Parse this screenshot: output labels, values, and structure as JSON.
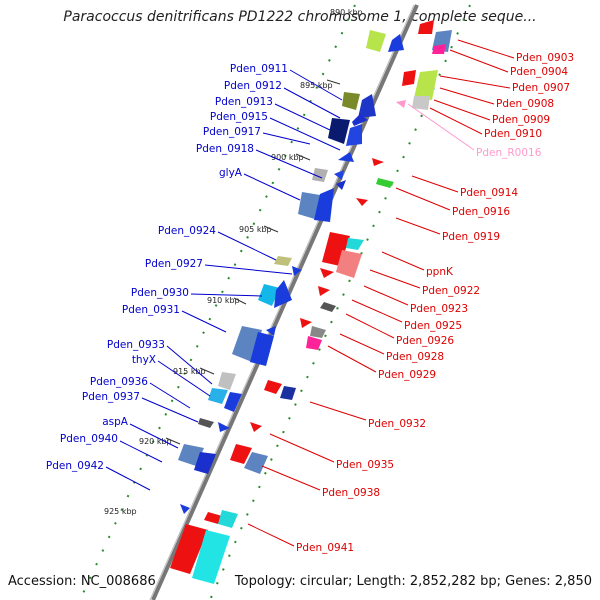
{
  "header": {
    "title": "Paracoccus denitrificans PD1222 chromosome 1, complete seque..."
  },
  "footer": {
    "accession": "Accession: NC_008686",
    "topology": "Topology: circular; Length: 2,852,282 bp; Genes: 2,850"
  },
  "colors": {
    "left_labels": "#0000cc",
    "right_labels": "#dd0000",
    "rna_label": "#ff99cc",
    "backbone": "#777777",
    "tick": "#228822"
  },
  "diagram": {
    "position_marks": [
      "890 kbp",
      "895 kbp",
      "900 kbp",
      "905 kbp",
      "910 kbp",
      "915 kbp",
      "920 kbp",
      "925 kbp"
    ],
    "left_genes": [
      "Pden_0911",
      "Pden_0912",
      "Pden_0913",
      "Pden_0915",
      "Pden_0917",
      "Pden_0918",
      "glyA",
      "Pden_0924",
      "Pden_0927",
      "Pden_0930",
      "Pden_0931",
      "Pden_0933",
      "thyX",
      "Pden_0936",
      "Pden_0937",
      "aspA",
      "Pden_0940",
      "Pden_0942"
    ],
    "right_genes": [
      "Pden_0903",
      "Pden_0904",
      "Pden_0907",
      "Pden_0908",
      "Pden_0909",
      "Pden_0910",
      "Pden_R0016",
      "Pden_0914",
      "Pden_0916",
      "Pden_0919",
      "ppnK",
      "Pden_0922",
      "Pden_0923",
      "Pden_0925",
      "Pden_0926",
      "Pden_0928",
      "Pden_0929",
      "Pden_0932",
      "Pden_0935",
      "Pden_0938",
      "Pden_0941"
    ]
  }
}
